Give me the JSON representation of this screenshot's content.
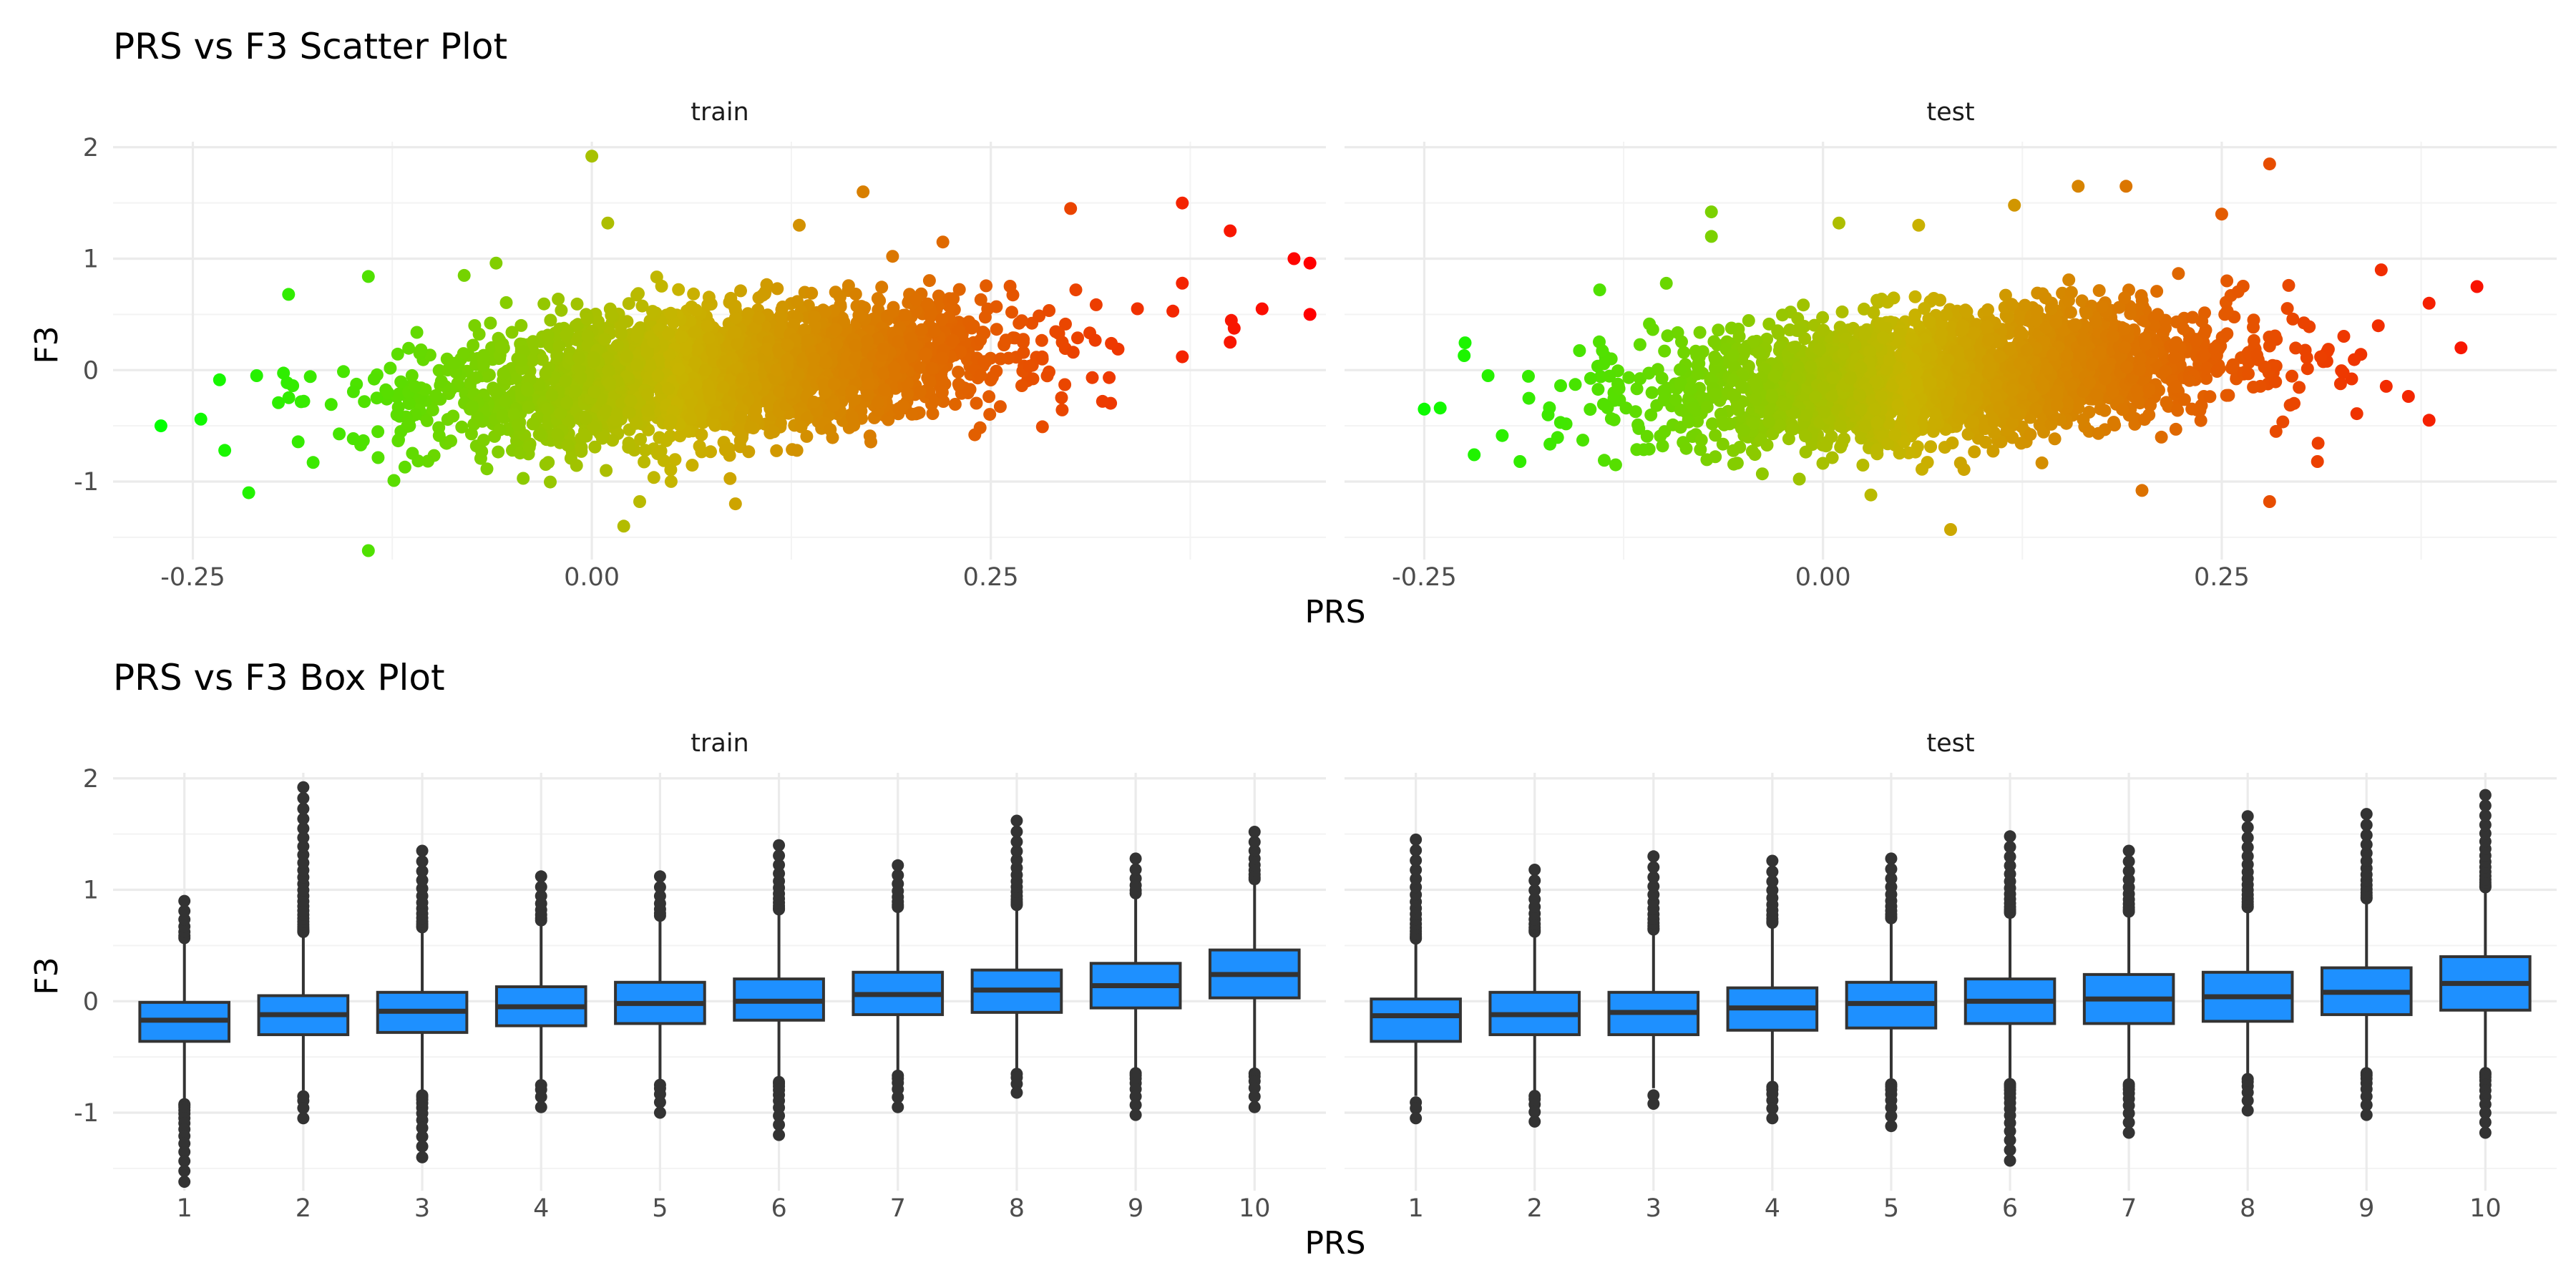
{
  "chart_data": [
    {
      "type": "scatter",
      "title": "PRS vs F3 Scatter Plot",
      "xlabel": "PRS",
      "ylabel": "F3",
      "facets": [
        "train",
        "test"
      ],
      "x_ticks": [
        "-0.25",
        "0.00",
        "0.25"
      ],
      "y_ticks": [
        "-1",
        "0",
        "1",
        "2"
      ],
      "xlim": [
        -0.3,
        0.46
      ],
      "ylim": [
        -1.7,
        2.05
      ],
      "grid": true,
      "color_scale": {
        "low": "#00ff00",
        "mid": "#c8b400",
        "high": "#ff0000",
        "encodes": "PRS"
      },
      "trend": [
        {
          "facet": "train",
          "slope": 1.2,
          "intercept": -0.13,
          "sd": 0.28
        },
        {
          "facet": "test",
          "slope": 1.0,
          "intercept": -0.12,
          "sd": 0.28
        }
      ],
      "series": [
        {
          "name": "train",
          "x_range": [
            -0.27,
            0.45
          ],
          "points": [
            [
              -0.27,
              -0.5
            ],
            [
              -0.245,
              -0.44
            ],
            [
              -0.23,
              -0.72
            ],
            [
              -0.215,
              -1.1
            ],
            [
              -0.21,
              -0.05
            ],
            [
              -0.19,
              0.68
            ],
            [
              -0.14,
              0.84
            ],
            [
              -0.14,
              -1.62
            ],
            [
              -0.08,
              0.85
            ],
            [
              -0.06,
              0.96
            ],
            [
              0.0,
              1.92
            ],
            [
              0.01,
              1.32
            ],
            [
              0.02,
              -1.4
            ],
            [
              0.03,
              -1.18
            ],
            [
              0.09,
              -1.2
            ],
            [
              0.13,
              1.3
            ],
            [
              0.17,
              1.6
            ],
            [
              0.22,
              1.15
            ],
            [
              0.24,
              -0.58
            ],
            [
              0.3,
              1.45
            ],
            [
              0.32,
              -0.28
            ],
            [
              0.37,
              1.5
            ],
            [
              0.37,
              0.78
            ],
            [
              0.37,
              0.12
            ],
            [
              0.4,
              1.25
            ],
            [
              0.4,
              0.25
            ],
            [
              0.42,
              0.55
            ],
            [
              0.44,
              1.0
            ],
            [
              0.45,
              0.96
            ],
            [
              0.45,
              0.5
            ]
          ]
        },
        {
          "name": "test",
          "x_range": [
            -0.25,
            0.4
          ],
          "points": [
            [
              -0.25,
              -0.35
            ],
            [
              -0.24,
              -0.34
            ],
            [
              -0.225,
              0.13
            ],
            [
              -0.21,
              -0.05
            ],
            [
              -0.19,
              -0.82
            ],
            [
              -0.14,
              0.72
            ],
            [
              -0.13,
              -0.85
            ],
            [
              -0.07,
              1.42
            ],
            [
              -0.07,
              1.2
            ],
            [
              0.01,
              1.32
            ],
            [
              0.03,
              -1.12
            ],
            [
              0.06,
              1.3
            ],
            [
              0.08,
              -1.43
            ],
            [
              0.12,
              1.48
            ],
            [
              0.16,
              1.65
            ],
            [
              0.19,
              1.65
            ],
            [
              0.2,
              -1.08
            ],
            [
              0.25,
              1.4
            ],
            [
              0.28,
              1.85
            ],
            [
              0.28,
              -1.18
            ],
            [
              0.31,
              -0.82
            ],
            [
              0.35,
              0.9
            ],
            [
              0.38,
              -0.45
            ],
            [
              0.38,
              0.6
            ],
            [
              0.4,
              0.2
            ],
            [
              0.41,
              0.75
            ]
          ]
        }
      ]
    },
    {
      "type": "box",
      "title": "PRS vs F3 Box Plot",
      "xlabel": "PRS",
      "ylabel": "F3",
      "facets": [
        "train",
        "test"
      ],
      "categories": [
        "1",
        "2",
        "3",
        "4",
        "5",
        "6",
        "7",
        "8",
        "9",
        "10"
      ],
      "y_ticks": [
        "-1",
        "0",
        "1",
        "2"
      ],
      "ylim": [
        -1.7,
        2.05
      ],
      "grid": true,
      "box_color": "#1e90ff",
      "outline_color": "#333333",
      "series": [
        {
          "name": "train",
          "q1": [
            -0.36,
            -0.3,
            -0.28,
            -0.22,
            -0.2,
            -0.17,
            -0.12,
            -0.1,
            -0.06,
            0.03
          ],
          "median": [
            -0.17,
            -0.12,
            -0.09,
            -0.05,
            -0.02,
            0.0,
            0.06,
            0.1,
            0.14,
            0.24
          ],
          "q3": [
            -0.01,
            0.05,
            0.08,
            0.13,
            0.17,
            0.2,
            0.26,
            0.28,
            0.34,
            0.46
          ],
          "whisker_low": [
            -0.88,
            -0.8,
            -0.8,
            -0.7,
            -0.7,
            -0.68,
            -0.62,
            -0.6,
            -0.6,
            -0.6
          ],
          "whisker_high": [
            0.52,
            0.58,
            0.62,
            0.68,
            0.72,
            0.78,
            0.8,
            0.82,
            0.92,
            1.05
          ],
          "outliers_high": [
            0.9,
            1.92,
            1.35,
            1.12,
            1.12,
            1.4,
            1.22,
            1.62,
            1.28,
            1.52
          ],
          "outliers_low": [
            -1.62,
            -1.05,
            -1.4,
            -0.95,
            -1.0,
            -1.2,
            -0.95,
            -0.82,
            -1.02,
            -0.95
          ]
        },
        {
          "name": "test",
          "q1": [
            -0.36,
            -0.3,
            -0.3,
            -0.26,
            -0.24,
            -0.2,
            -0.2,
            -0.18,
            -0.12,
            -0.08
          ],
          "median": [
            -0.13,
            -0.12,
            -0.1,
            -0.06,
            -0.02,
            0.0,
            0.02,
            0.04,
            0.08,
            0.16
          ],
          "q3": [
            0.02,
            0.08,
            0.08,
            0.12,
            0.17,
            0.2,
            0.24,
            0.26,
            0.3,
            0.4
          ],
          "whisker_low": [
            -0.85,
            -0.8,
            -0.78,
            -0.72,
            -0.7,
            -0.7,
            -0.7,
            -0.65,
            -0.6,
            -0.6
          ],
          "whisker_high": [
            0.52,
            0.58,
            0.6,
            0.66,
            0.7,
            0.75,
            0.76,
            0.8,
            0.88,
            0.98
          ],
          "outliers_high": [
            1.45,
            1.18,
            1.3,
            1.26,
            1.28,
            1.48,
            1.35,
            1.66,
            1.68,
            1.85
          ],
          "outliers_low": [
            -1.05,
            -1.08,
            -0.92,
            -1.05,
            -1.12,
            -1.43,
            -1.18,
            -0.98,
            -1.02,
            -1.18
          ]
        }
      ]
    }
  ]
}
